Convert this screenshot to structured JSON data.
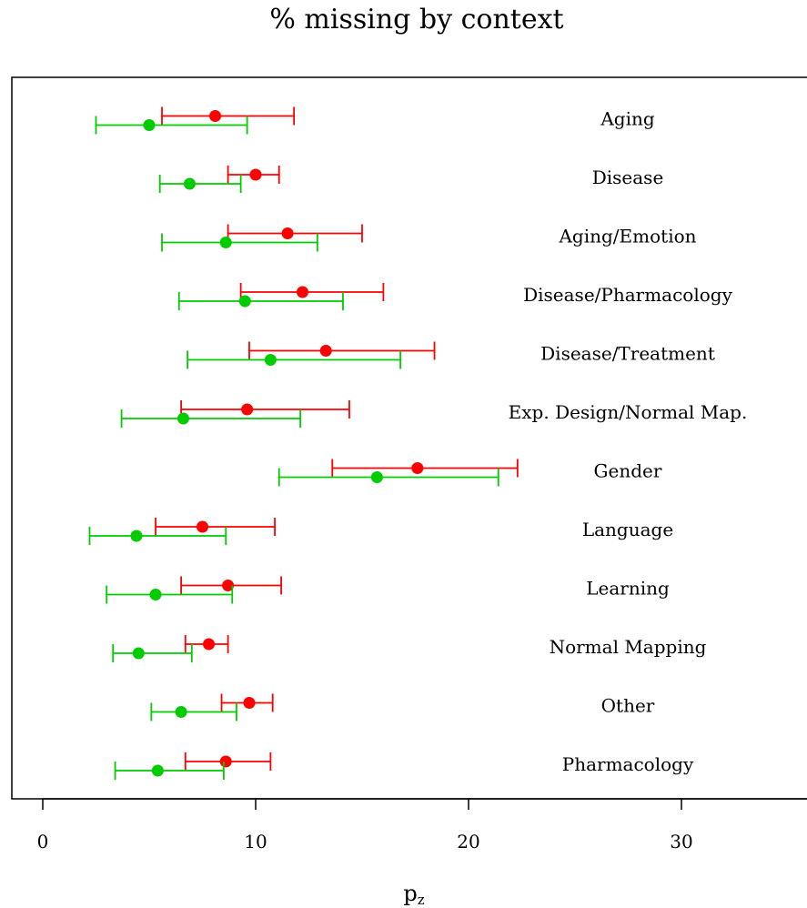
{
  "chart_data": {
    "type": "scatter",
    "title": "% missing by context",
    "xlabel": "p",
    "xlabel_sub": "z",
    "ylabel": "",
    "xlim": [
      -1.5,
      36
    ],
    "xticks": [
      0,
      10,
      20,
      30
    ],
    "grid": false,
    "legend": "none",
    "categories": [
      "Aging",
      "Disease",
      "Aging/Emotion",
      "Disease/Pharmacology",
      "Disease/Treatment",
      "Exp. Design/Normal Map.",
      "Gender",
      "Language",
      "Learning",
      "Normal Mapping",
      "Other",
      "Pharmacology"
    ],
    "series": [
      {
        "color": "#ff0000",
        "points": [
          {
            "value": 8.1,
            "low": 5.6,
            "high": 11.8
          },
          {
            "value": 10.0,
            "low": 8.7,
            "high": 11.1
          },
          {
            "value": 11.5,
            "low": 8.7,
            "high": 15.0
          },
          {
            "value": 12.2,
            "low": 9.3,
            "high": 16.0
          },
          {
            "value": 13.3,
            "low": 9.7,
            "high": 18.4
          },
          {
            "value": 9.6,
            "low": 6.5,
            "high": 14.4
          },
          {
            "value": 17.6,
            "low": 13.6,
            "high": 22.3
          },
          {
            "value": 7.5,
            "low": 5.3,
            "high": 10.9
          },
          {
            "value": 8.7,
            "low": 6.5,
            "high": 11.2
          },
          {
            "value": 7.8,
            "low": 6.7,
            "high": 8.7
          },
          {
            "value": 9.7,
            "low": 8.4,
            "high": 10.8
          },
          {
            "value": 8.6,
            "low": 6.7,
            "high": 10.7
          }
        ]
      },
      {
        "color": "#00cc00",
        "points": [
          {
            "value": 5.0,
            "low": 2.5,
            "high": 9.6
          },
          {
            "value": 6.9,
            "low": 5.5,
            "high": 9.3
          },
          {
            "value": 8.6,
            "low": 5.6,
            "high": 12.9
          },
          {
            "value": 9.5,
            "low": 6.4,
            "high": 14.1
          },
          {
            "value": 10.7,
            "low": 6.8,
            "high": 16.8
          },
          {
            "value": 6.6,
            "low": 3.7,
            "high": 12.1
          },
          {
            "value": 15.7,
            "low": 11.1,
            "high": 21.4
          },
          {
            "value": 4.4,
            "low": 2.2,
            "high": 8.6
          },
          {
            "value": 5.3,
            "low": 3.0,
            "high": 8.9
          },
          {
            "value": 4.5,
            "low": 3.3,
            "high": 7.0
          },
          {
            "value": 6.5,
            "low": 5.1,
            "high": 9.1
          },
          {
            "value": 5.4,
            "low": 3.4,
            "high": 8.5
          }
        ]
      }
    ]
  }
}
